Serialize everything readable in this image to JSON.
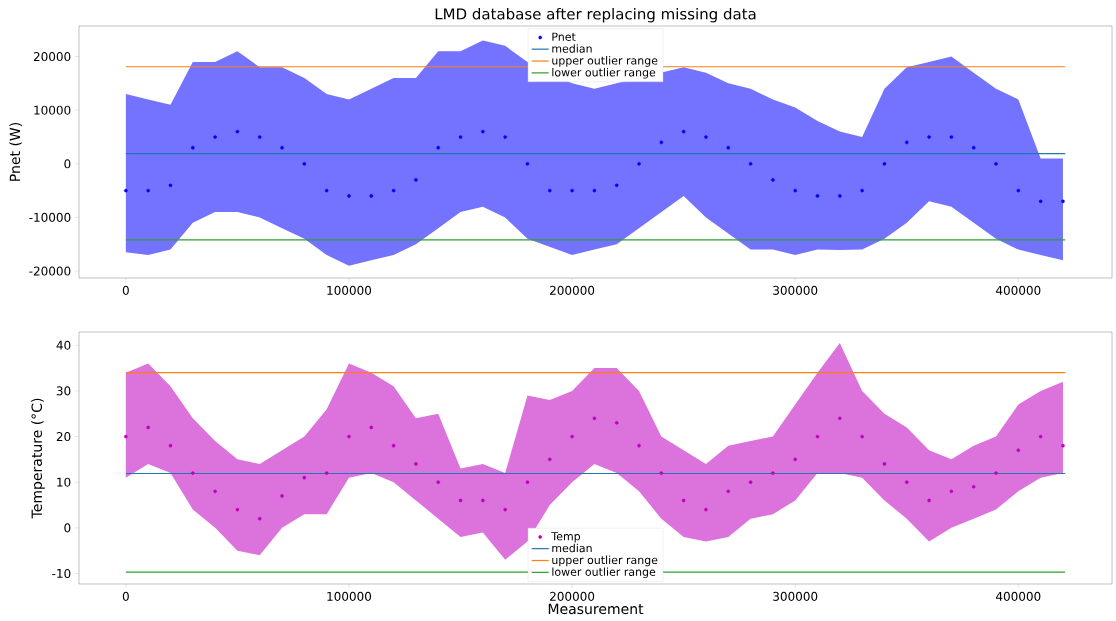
{
  "chart_data": [
    {
      "type": "scatter",
      "title": "LMD database after replacing missing data",
      "ylabel": "Pnet (W)",
      "xlim": [
        -21000,
        442000
      ],
      "ylim": [
        -21300,
        25700
      ],
      "xticks": [
        0,
        100000,
        200000,
        300000,
        400000
      ],
      "yticks": [
        -20000,
        -10000,
        0,
        10000,
        20000
      ],
      "legend": "top",
      "series": [
        {
          "name": "Pnet",
          "marker": "circle",
          "color": "#0000ff",
          "x": [
            0,
            10000,
            20000,
            30000,
            40000,
            50000,
            60000,
            70000,
            80000,
            90000,
            100000,
            110000,
            120000,
            130000,
            140000,
            150000,
            160000,
            170000,
            180000,
            190000,
            200000,
            210000,
            220000,
            230000,
            240000,
            250000,
            260000,
            270000,
            280000,
            290000,
            300000,
            310000,
            320000,
            330000,
            340000,
            350000,
            360000,
            370000,
            380000,
            390000,
            400000,
            410000,
            420000
          ],
          "values": [
            -5000,
            -5000,
            -4000,
            3000,
            5000,
            6000,
            5000,
            3000,
            0,
            -5000,
            -6000,
            -6000,
            -5000,
            -3000,
            3000,
            5000,
            6000,
            5000,
            0,
            -5000,
            -5000,
            -5000,
            -4000,
            0,
            4000,
            6000,
            5000,
            3000,
            0,
            -3000,
            -5000,
            -6000,
            -6000,
            -5000,
            0,
            4000,
            5000,
            5000,
            3000,
            0,
            -5000,
            -7000,
            -7000
          ],
          "lower": [
            -16500,
            -17000,
            -16000,
            -11000,
            -9000,
            -9000,
            -10000,
            -12000,
            -14000,
            -17000,
            -19000,
            -18000,
            -17000,
            -15000,
            -12000,
            -9000,
            -8000,
            -10000,
            -14000,
            null,
            -17000,
            -16000,
            -15000,
            null,
            null,
            -6000,
            -10000,
            -13000,
            -16000,
            -16000,
            -17000,
            -16000,
            -16100,
            -16000,
            -14000,
            -11000,
            -7000,
            -8000,
            -11000,
            -14000,
            -16000,
            -17000,
            -18000
          ],
          "upper": [
            13000,
            12000,
            11000,
            19000,
            19000,
            21000,
            18000,
            18000,
            16000,
            13000,
            12000,
            14000,
            16000,
            16000,
            21000,
            21000,
            23000,
            22000,
            19000,
            null,
            15000,
            14000,
            15000,
            null,
            null,
            18000,
            17000,
            15000,
            14000,
            12000,
            10500,
            8000,
            6000,
            5000,
            14000,
            18000,
            19000,
            20000,
            17000,
            14000,
            12000,
            1000,
            1000
          ]
        },
        {
          "name": "median",
          "type": "line",
          "color": "#1f77b4",
          "x": [
            0,
            421000
          ],
          "values": [
            1900,
            1900
          ]
        },
        {
          "name": "upper outlier range",
          "type": "line",
          "color": "#ff7f0e",
          "x": [
            0,
            421000
          ],
          "values": [
            18100,
            18100
          ]
        },
        {
          "name": "lower outlier range",
          "type": "line",
          "color": "#2ca02c",
          "x": [
            0,
            421000
          ],
          "values": [
            -14200,
            -14200
          ]
        }
      ]
    },
    {
      "type": "scatter",
      "xlabel": "Measurement",
      "ylabel": "Temperature (°C)",
      "xlim": [
        -21000,
        442000
      ],
      "ylim": [
        -12.3,
        42.9
      ],
      "xticks": [
        0,
        100000,
        200000,
        300000,
        400000
      ],
      "yticks": [
        -10,
        0,
        10,
        20,
        30,
        40
      ],
      "legend": "bottom",
      "series": [
        {
          "name": "Temp",
          "marker": "circle",
          "color": "#bf00bf",
          "x": [
            0,
            10000,
            20000,
            30000,
            40000,
            50000,
            60000,
            70000,
            80000,
            90000,
            100000,
            110000,
            120000,
            130000,
            140000,
            150000,
            160000,
            170000,
            180000,
            190000,
            200000,
            210000,
            220000,
            230000,
            240000,
            250000,
            260000,
            270000,
            280000,
            290000,
            300000,
            310000,
            320000,
            330000,
            340000,
            350000,
            360000,
            370000,
            380000,
            390000,
            400000,
            410000,
            420000
          ],
          "values": [
            20,
            22,
            18,
            12,
            8,
            4,
            2,
            7,
            11,
            12,
            20,
            22,
            18,
            14,
            10,
            6,
            6,
            4,
            10,
            15,
            20,
            24,
            23,
            18,
            12,
            6,
            4,
            8,
            10,
            12,
            15,
            20,
            24,
            20,
            14,
            10,
            6,
            8,
            9,
            12,
            17,
            20,
            18
          ],
          "lower": [
            11,
            14,
            12,
            4,
            0,
            -5,
            -6,
            0,
            3,
            3,
            11,
            12,
            10,
            6,
            2,
            -2,
            -1,
            -7,
            -3,
            5,
            10,
            14,
            12,
            8,
            2,
            -2,
            -3,
            -2,
            2,
            3,
            6,
            12,
            12,
            11,
            6,
            2,
            -3,
            0,
            2,
            4,
            8,
            11,
            12
          ],
          "upper": [
            34,
            36,
            31,
            24,
            19,
            15,
            14,
            17,
            20,
            26,
            36,
            34,
            31,
            24,
            25,
            13,
            14,
            12,
            29,
            28,
            30,
            35,
            35,
            30,
            20,
            17,
            14,
            18,
            19,
            20,
            27,
            34,
            40.5,
            30,
            25,
            22,
            17,
            15,
            18,
            20,
            27,
            30,
            32
          ]
        },
        {
          "name": "median",
          "type": "line",
          "color": "#1f77b4",
          "x": [
            0,
            421000
          ],
          "values": [
            11.9,
            11.9
          ]
        },
        {
          "name": "upper outlier range",
          "type": "line",
          "color": "#ff7f0e",
          "x": [
            0,
            421000
          ],
          "values": [
            34.0,
            34.0
          ]
        },
        {
          "name": "lower outlier range",
          "type": "line",
          "color": "#2ca02c",
          "x": [
            0,
            421000
          ],
          "values": [
            -9.7,
            -9.7
          ]
        }
      ]
    }
  ]
}
